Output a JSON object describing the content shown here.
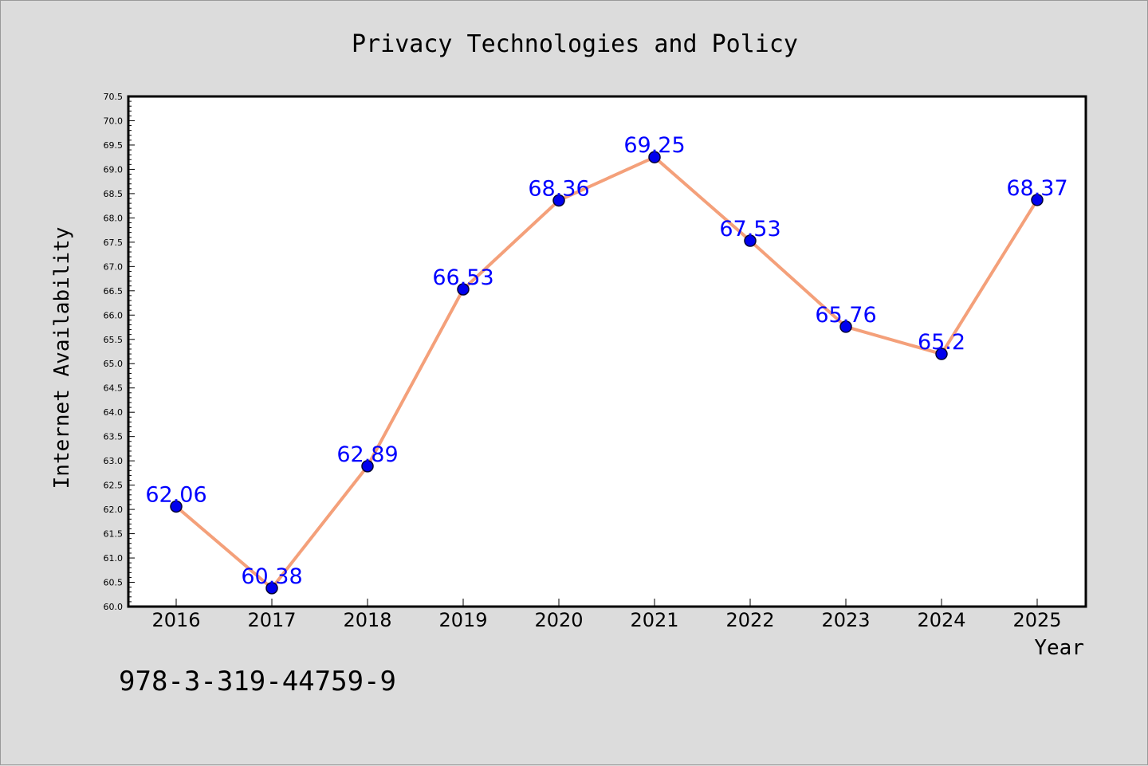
{
  "chart_data": {
    "type": "line",
    "title": "Privacy Technologies and Policy",
    "xlabel": "Year",
    "ylabel": "Internet Availability",
    "categories": [
      "2016",
      "2017",
      "2018",
      "2019",
      "2020",
      "2021",
      "2022",
      "2023",
      "2024",
      "2025"
    ],
    "series": [
      {
        "values": [
          62.06,
          60.38,
          62.89,
          66.53,
          68.36,
          69.25,
          67.53,
          65.76,
          65.2,
          68.37
        ]
      }
    ],
    "data_labels": [
      "62.06",
      "60.38",
      "62.89",
      "66.53",
      "68.36",
      "69.25",
      "67.53",
      "65.76",
      "65.2",
      "68.37"
    ],
    "ylim": [
      60.0,
      70.5
    ],
    "y_tick_labels": [
      "60.0",
      "60.5",
      "61.0",
      "61.5",
      "62.0",
      "62.5",
      "63.0",
      "63.5",
      "64.0",
      "64.5",
      "65.0",
      "65.5",
      "66.0",
      "66.5",
      "67.0",
      "67.5",
      "68.0",
      "68.5",
      "69.0",
      "69.5",
      "70.0",
      "70.5"
    ],
    "grid": false,
    "legend": "none",
    "colors": {
      "line": "#f4a07a",
      "marker": "#0000ee",
      "label": "#0000ff",
      "background": "#dcdcdc",
      "plot_area": "#ffffff"
    }
  },
  "footer": {
    "isbn": "978-3-319-44759-9"
  }
}
